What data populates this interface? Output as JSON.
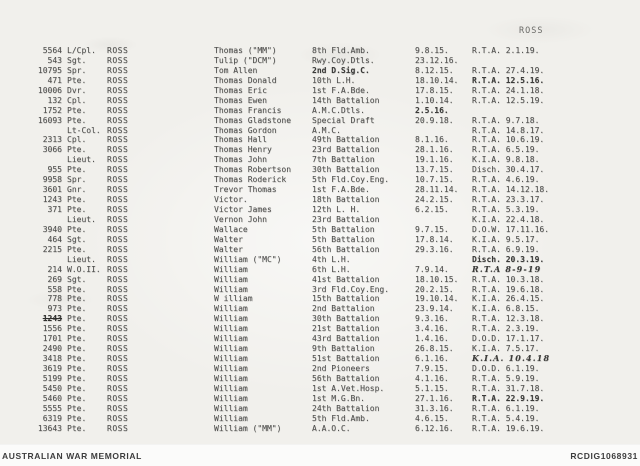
{
  "page": {
    "header_label": "ROSS",
    "footer": {
      "left": "AUSTRALIAN WAR MEMORIAL",
      "right": "RCDIG1068931"
    },
    "colors": {
      "paper": "#f1f0ec",
      "ink": "#4f4f4d",
      "footer_bg": "#fbfbfa",
      "footer_text": "#3d3d3d"
    }
  },
  "roll": {
    "rows": [
      {
        "number": "5564",
        "rank": "L/Cpl.",
        "surname": "ROSS",
        "name": "Thomas (\"MM\")",
        "unit": "8th Fld.Amb.",
        "date": "9.8.15.",
        "fate": "R.T.A. 2.1.19."
      },
      {
        "number": "543",
        "rank": "Sgt.",
        "surname": "ROSS",
        "name": "Tulip (\"DCM\")",
        "unit": "Rwy.Coy.Dtls.",
        "date": "23.12.16.",
        "fate": ""
      },
      {
        "number": "10795",
        "rank": "Spr.",
        "surname": "ROSS",
        "name": "Tom Allen",
        "unit": "2nd D.Sig.C.",
        "unit_style": "bold",
        "date": "8.12.15.",
        "fate": "R.T.A. 27.4.19."
      },
      {
        "number": "471",
        "rank": "Pte.",
        "surname": "ROSS",
        "name": "Thomas Donald",
        "unit": "10th L.H.",
        "date": "18.10.14.",
        "fate": "R.T.A. 12.5.16.",
        "fate_style": "bold"
      },
      {
        "number": "10006",
        "rank": "Dvr.",
        "surname": "ROSS",
        "name": "Thomas Eric",
        "unit": "1st F.A.Bde.",
        "date": "17.8.15.",
        "fate": "R.T.A. 24.1.18."
      },
      {
        "number": "132",
        "rank": "Cpl.",
        "surname": "ROSS",
        "name": "Thomas Ewen",
        "unit": "14th Battalion",
        "date": "1.10.14.",
        "fate": "R.T.A. 12.5.19."
      },
      {
        "number": "1752",
        "rank": "Pte.",
        "surname": "ROSS",
        "name": "Thomas Francis",
        "unit": "A.M.C.Dtls.",
        "date": "2.5.16.",
        "date_style": "bold",
        "fate": ""
      },
      {
        "number": "16093",
        "rank": "Pte.",
        "surname": "ROSS",
        "name": "Thomas Gladstone",
        "unit": "Special Draft",
        "date": "20.9.18.",
        "fate": "R.T.A. 9.7.18."
      },
      {
        "number": "",
        "rank": "Lt-Col.",
        "surname": "ROSS",
        "name": "Thomas Gordon",
        "unit": "A.M.C.",
        "date": "",
        "fate": "R.T.A. 14.8.17."
      },
      {
        "number": "2313",
        "rank": "Cpl.",
        "surname": "ROSS",
        "name": "Thomas Hall",
        "unit": "49th Battalion",
        "date": "8.1.16.",
        "fate": "R.T.A. 10.6.19."
      },
      {
        "number": "3066",
        "rank": "Pte.",
        "surname": "ROSS",
        "name": "Thomas Henry",
        "unit": "23rd Battalion",
        "date": "28.1.16.",
        "fate": "R.T.A. 6.5.19."
      },
      {
        "number": "",
        "rank": "Lieut.",
        "surname": "ROSS",
        "name": "Thomas John",
        "unit": "7th Battalion",
        "date": "19.1.16.",
        "fate": "K.I.A. 9.8.18."
      },
      {
        "number": "955",
        "rank": "Pte.",
        "surname": "ROSS",
        "name": "Thomas Robertson",
        "unit": "30th Battalion",
        "date": "13.7.15.",
        "fate": "Disch. 30.4.17."
      },
      {
        "number": "9958",
        "rank": "Spr.",
        "surname": "ROSS",
        "name": "Thomas Roderick",
        "unit": "5th Fld.Coy.Eng.",
        "date": "10.7.15.",
        "fate": "R.T.A. 4.6.19."
      },
      {
        "number": "3601",
        "rank": "Gnr.",
        "surname": "ROSS",
        "name": "Trevor Thomas",
        "unit": "1st F.A.Bde.",
        "date": "28.11.14.",
        "fate": "R.T.A. 14.12.18."
      },
      {
        "number": "1243",
        "rank": "Pte.",
        "surname": "ROSS",
        "name": "Victor.",
        "unit": "18th Battalion",
        "date": "24.2.15.",
        "fate": "R.T.A. 23.3.17."
      },
      {
        "number": "371",
        "rank": "Pte.",
        "surname": "ROSS",
        "name": "Victor James",
        "unit": "12th L. H.",
        "date": "6.2.15.",
        "fate": "R.T.A. 5.3.19."
      },
      {
        "number": "",
        "rank": "Lieut.",
        "surname": "ROSS",
        "name": "Vernon John",
        "unit": "23rd Battalion",
        "date": "",
        "fate": "K.I.A. 22.4.18."
      },
      {
        "number": "3940",
        "rank": "Pte.",
        "surname": "ROSS",
        "name": "Wallace",
        "unit": "5th Battalion",
        "date": "9.7.15.",
        "fate": "D.O.W. 17.11.16."
      },
      {
        "number": "464",
        "rank": "Sgt.",
        "surname": "ROSS",
        "name": "Walter",
        "unit": "5th Battalion",
        "date": "17.8.14.",
        "fate": "K.I.A. 9.5.17."
      },
      {
        "number": "2215",
        "rank": "Pte.",
        "surname": "ROSS",
        "name": "Walter",
        "unit": "56th Battalion",
        "date": "29.3.16.",
        "fate": "R.T.A. 6.9.19."
      },
      {
        "number": "",
        "rank": "Lieut.",
        "surname": "ROSS",
        "name": "William (\"MC\")",
        "unit": "4th L.H.",
        "date": "",
        "fate": "Disch. 20.3.19.",
        "fate_style": "bold"
      },
      {
        "number": "214",
        "rank": "W.O.II.",
        "surname": "ROSS",
        "name": "William",
        "unit": "6th L.H.",
        "date": "7.9.14.",
        "fate": "R.T.A  8-9-19",
        "fate_style": "script"
      },
      {
        "number": "269",
        "rank": "Sgt.",
        "surname": "ROSS",
        "name": "William",
        "unit": "41st Battalion",
        "date": "18.10.15.",
        "fate": "R.T.A. 10.3.18."
      },
      {
        "number": "558",
        "rank": "Pte.",
        "surname": "ROSS",
        "name": "William",
        "unit": "3rd Fld.Coy.Eng.",
        "date": "20.2.15.",
        "fate": "R.T.A. 19.6.18."
      },
      {
        "number": "778",
        "rank": "Pte.",
        "surname": "ROSS",
        "name": "W illiam",
        "unit": "15th Battalion",
        "date": "19.10.14.",
        "fate": "K.I.A. 26.4.15."
      },
      {
        "number": "973",
        "rank": "Pte.",
        "surname": "ROSS",
        "name": "William",
        "unit": "2nd Battalion",
        "date": "23.9.14.",
        "fate": "K.I.A. 6.8.15."
      },
      {
        "number": "1243",
        "number_style": "bold-strike",
        "rank": "Pte.",
        "surname": "ROSS",
        "name": "William",
        "unit": "30th Battalion",
        "date": "9.3.16.",
        "fate": "R.T.A. 12.3.18."
      },
      {
        "number": "1556",
        "rank": "Pte.",
        "surname": "ROSS",
        "name": "William",
        "unit": "21st Battalion",
        "date": "3.4.16.",
        "fate": "R.T.A. 2.3.19."
      },
      {
        "number": "1701",
        "rank": "Pte.",
        "surname": "ROSS",
        "name": "William",
        "unit": "43rd Battalion",
        "date": "1.4.16.",
        "fate": "D.O.D. 17.1.17."
      },
      {
        "number": "2490",
        "rank": "Pte.",
        "surname": "ROSS",
        "name": "William",
        "unit": "9th Battalion",
        "date": "26.8.15.",
        "fate": "K.I.A. 7.5.17."
      },
      {
        "number": "3418",
        "rank": "Pte.",
        "surname": "ROSS",
        "name": "William",
        "unit": "51st Battalion",
        "date": "6.1.16.",
        "fate": "K.I.A. 10.4.18",
        "fate_style": "script"
      },
      {
        "number": "3619",
        "rank": "Pte.",
        "surname": "ROSS",
        "name": "William",
        "unit": "2nd Pioneers",
        "date": "7.9.15.",
        "fate": "D.O.D. 6.1.19."
      },
      {
        "number": "5199",
        "rank": "Pte.",
        "surname": "ROSS",
        "name": "William",
        "unit": "56th Battalion",
        "date": "4.1.16.",
        "fate": "R.T.A. 5.9.19."
      },
      {
        "number": "5450",
        "rank": "Pte.",
        "surname": "ROSS",
        "name": "William",
        "unit": "1st A.Vet.Hosp.",
        "date": "5.1.15.",
        "fate": "R.T.A. 31.7.18."
      },
      {
        "number": "5460",
        "rank": "Pte.",
        "surname": "ROSS",
        "name": "William",
        "unit": "1st M.G.Bn.",
        "date": "27.1.16.",
        "fate": "R.T.A. 22.9.19.",
        "fate_style": "bold"
      },
      {
        "number": "5555",
        "rank": "Pte.",
        "surname": "ROSS",
        "name": "William",
        "unit": "24th Battalion",
        "date": "31.3.16.",
        "fate": "R.T.A. 6.1.19."
      },
      {
        "number": "6319",
        "rank": "Pte.",
        "surname": "ROSS",
        "name": "William",
        "unit": "5th Fld.Amb.",
        "date": "4.6.15.",
        "fate": "R.T.A. 5.4.19."
      },
      {
        "number": "13643",
        "rank": "Pte.",
        "surname": "ROSS",
        "name": "William (\"MM\")",
        "unit": "A.A.O.C.",
        "date": "6.12.16.",
        "fate": "R.T.A. 19.6.19."
      }
    ]
  }
}
